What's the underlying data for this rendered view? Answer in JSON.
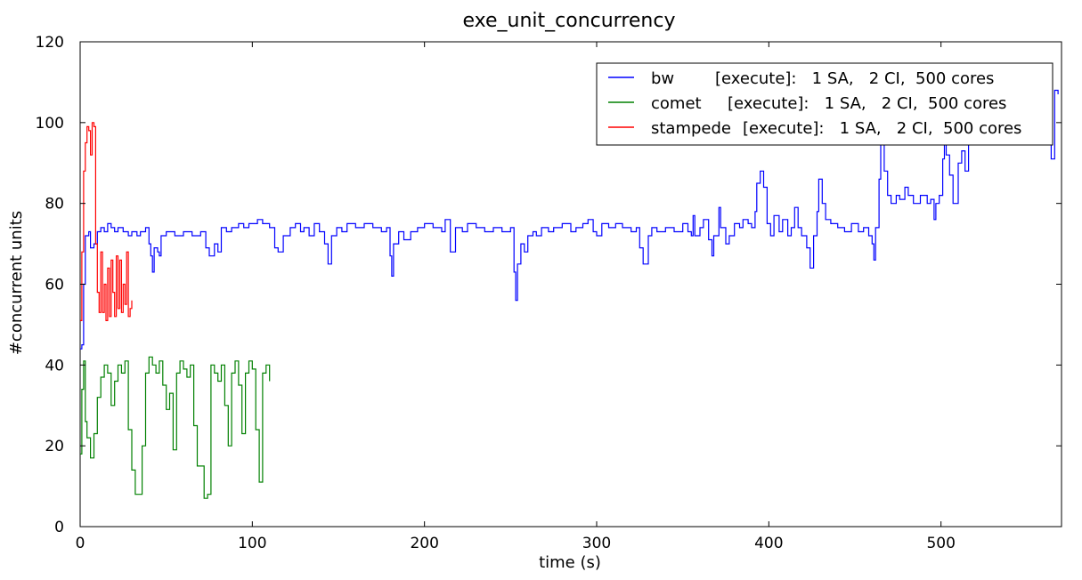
{
  "chart_data": {
    "type": "line",
    "title": "exe_unit_concurrency",
    "xlabel": "time (s)",
    "ylabel": "#concurrent units",
    "xlim": [
      0,
      570
    ],
    "ylim": [
      0,
      120
    ],
    "x_ticks": [
      0,
      100,
      200,
      300,
      400,
      500
    ],
    "y_ticks": [
      0,
      20,
      40,
      60,
      80,
      100,
      120
    ],
    "legend_position": "top-right",
    "series": [
      {
        "name": "bw",
        "legend_name": "bw",
        "legend_detail": "[execute]:   1 SA,   2 CI,  500 cores",
        "color": "#0000ff",
        "points": [
          [
            0,
            44
          ],
          [
            1,
            45
          ],
          [
            2,
            60
          ],
          [
            3,
            72
          ],
          [
            5,
            73
          ],
          [
            6,
            69
          ],
          [
            8,
            70
          ],
          [
            10,
            73
          ],
          [
            12,
            74
          ],
          [
            14,
            73
          ],
          [
            16,
            75
          ],
          [
            18,
            74
          ],
          [
            20,
            73
          ],
          [
            22,
            74
          ],
          [
            25,
            73
          ],
          [
            28,
            72
          ],
          [
            30,
            73
          ],
          [
            33,
            72
          ],
          [
            35,
            73
          ],
          [
            38,
            74
          ],
          [
            40,
            70
          ],
          [
            41,
            67
          ],
          [
            42,
            63
          ],
          [
            43,
            69
          ],
          [
            45,
            68
          ],
          [
            46,
            67
          ],
          [
            47,
            72
          ],
          [
            50,
            73
          ],
          [
            55,
            72
          ],
          [
            60,
            73
          ],
          [
            65,
            72
          ],
          [
            70,
            73
          ],
          [
            73,
            69
          ],
          [
            75,
            67
          ],
          [
            78,
            70
          ],
          [
            80,
            68
          ],
          [
            82,
            74
          ],
          [
            85,
            73
          ],
          [
            88,
            74
          ],
          [
            92,
            75
          ],
          [
            95,
            74
          ],
          [
            98,
            75
          ],
          [
            100,
            75
          ],
          [
            103,
            76
          ],
          [
            106,
            75
          ],
          [
            110,
            74
          ],
          [
            113,
            69
          ],
          [
            115,
            68
          ],
          [
            118,
            72
          ],
          [
            122,
            74
          ],
          [
            125,
            75
          ],
          [
            128,
            73
          ],
          [
            130,
            74
          ],
          [
            133,
            72
          ],
          [
            136,
            75
          ],
          [
            139,
            73
          ],
          [
            142,
            70
          ],
          [
            144,
            65
          ],
          [
            146,
            72
          ],
          [
            149,
            74
          ],
          [
            152,
            73
          ],
          [
            155,
            75
          ],
          [
            160,
            74
          ],
          [
            165,
            75
          ],
          [
            170,
            74
          ],
          [
            175,
            73
          ],
          [
            178,
            74
          ],
          [
            180,
            67
          ],
          [
            181,
            62
          ],
          [
            182,
            70
          ],
          [
            185,
            73
          ],
          [
            188,
            71
          ],
          [
            192,
            73
          ],
          [
            196,
            74
          ],
          [
            200,
            75
          ],
          [
            205,
            74
          ],
          [
            210,
            73
          ],
          [
            212,
            76
          ],
          [
            215,
            68
          ],
          [
            218,
            74
          ],
          [
            222,
            73
          ],
          [
            225,
            75
          ],
          [
            230,
            74
          ],
          [
            235,
            73
          ],
          [
            240,
            74
          ],
          [
            245,
            73
          ],
          [
            250,
            74
          ],
          [
            252,
            63
          ],
          [
            253,
            56
          ],
          [
            254,
            65
          ],
          [
            256,
            70
          ],
          [
            258,
            68
          ],
          [
            260,
            72
          ],
          [
            263,
            73
          ],
          [
            265,
            72
          ],
          [
            268,
            74
          ],
          [
            272,
            73
          ],
          [
            275,
            74
          ],
          [
            280,
            75
          ],
          [
            285,
            73
          ],
          [
            288,
            74
          ],
          [
            292,
            75
          ],
          [
            295,
            76
          ],
          [
            298,
            73
          ],
          [
            300,
            72
          ],
          [
            303,
            75
          ],
          [
            307,
            74
          ],
          [
            311,
            75
          ],
          [
            315,
            74
          ],
          [
            320,
            73
          ],
          [
            323,
            74
          ],
          [
            325,
            69
          ],
          [
            327,
            65
          ],
          [
            330,
            72
          ],
          [
            332,
            74
          ],
          [
            335,
            73
          ],
          [
            340,
            74
          ],
          [
            345,
            73
          ],
          [
            350,
            75
          ],
          [
            353,
            73
          ],
          [
            355,
            72
          ],
          [
            356,
            77
          ],
          [
            357,
            72
          ],
          [
            360,
            74
          ],
          [
            362,
            76
          ],
          [
            365,
            71
          ],
          [
            367,
            67
          ],
          [
            368,
            72
          ],
          [
            371,
            79
          ],
          [
            372,
            74
          ],
          [
            375,
            70
          ],
          [
            377,
            72
          ],
          [
            380,
            75
          ],
          [
            383,
            74
          ],
          [
            385,
            76
          ],
          [
            388,
            75
          ],
          [
            390,
            74
          ],
          [
            392,
            78
          ],
          [
            393,
            85
          ],
          [
            395,
            88
          ],
          [
            397,
            84
          ],
          [
            399,
            75
          ],
          [
            401,
            72
          ],
          [
            403,
            77
          ],
          [
            406,
            73
          ],
          [
            408,
            76
          ],
          [
            411,
            72
          ],
          [
            413,
            74
          ],
          [
            415,
            79
          ],
          [
            417,
            74
          ],
          [
            419,
            72
          ],
          [
            422,
            69
          ],
          [
            424,
            64
          ],
          [
            426,
            72
          ],
          [
            428,
            78
          ],
          [
            429,
            86
          ],
          [
            431,
            80
          ],
          [
            433,
            76
          ],
          [
            436,
            75
          ],
          [
            440,
            74
          ],
          [
            444,
            73
          ],
          [
            448,
            75
          ],
          [
            452,
            73
          ],
          [
            455,
            74
          ],
          [
            458,
            72
          ],
          [
            460,
            70
          ],
          [
            461,
            66
          ],
          [
            462,
            74
          ],
          [
            464,
            86
          ],
          [
            465,
            96
          ],
          [
            467,
            88
          ],
          [
            469,
            82
          ],
          [
            471,
            80
          ],
          [
            474,
            82
          ],
          [
            476,
            81
          ],
          [
            479,
            84
          ],
          [
            481,
            82
          ],
          [
            484,
            80
          ],
          [
            488,
            82
          ],
          [
            492,
            80
          ],
          [
            494,
            81
          ],
          [
            496,
            76
          ],
          [
            497,
            80
          ],
          [
            499,
            82
          ],
          [
            501,
            91
          ],
          [
            502,
            98
          ],
          [
            503,
            92
          ],
          [
            505,
            87
          ],
          [
            507,
            80
          ],
          [
            510,
            90
          ],
          [
            512,
            93
          ],
          [
            514,
            88
          ],
          [
            516,
            95
          ],
          [
            520,
            99
          ],
          [
            525,
            98
          ],
          [
            530,
            99
          ],
          [
            536,
            100
          ],
          [
            540,
            98
          ],
          [
            545,
            99
          ],
          [
            550,
            96
          ],
          [
            555,
            98
          ],
          [
            558,
            100
          ],
          [
            562,
            105
          ],
          [
            564,
            91
          ],
          [
            566,
            108
          ],
          [
            568,
            107
          ]
        ]
      },
      {
        "name": "comet",
        "legend_name": "comet",
        "legend_detail": "[execute]:   1 SA,   2 CI,  500 cores",
        "color": "#008000",
        "points": [
          [
            0,
            18
          ],
          [
            1,
            34
          ],
          [
            2,
            41
          ],
          [
            3,
            26
          ],
          [
            4,
            22
          ],
          [
            6,
            17
          ],
          [
            8,
            23
          ],
          [
            10,
            32
          ],
          [
            12,
            37
          ],
          [
            14,
            40
          ],
          [
            16,
            38
          ],
          [
            18,
            30
          ],
          [
            20,
            36
          ],
          [
            22,
            40
          ],
          [
            24,
            38
          ],
          [
            26,
            41
          ],
          [
            28,
            24
          ],
          [
            30,
            14
          ],
          [
            32,
            8
          ],
          [
            34,
            8
          ],
          [
            36,
            20
          ],
          [
            38,
            38
          ],
          [
            40,
            42
          ],
          [
            42,
            40
          ],
          [
            44,
            38
          ],
          [
            46,
            41
          ],
          [
            48,
            35
          ],
          [
            50,
            29
          ],
          [
            52,
            33
          ],
          [
            54,
            19
          ],
          [
            56,
            38
          ],
          [
            58,
            41
          ],
          [
            60,
            39
          ],
          [
            62,
            37
          ],
          [
            64,
            40
          ],
          [
            66,
            25
          ],
          [
            68,
            15
          ],
          [
            70,
            15
          ],
          [
            72,
            7
          ],
          [
            74,
            8
          ],
          [
            76,
            40
          ],
          [
            78,
            38
          ],
          [
            80,
            36
          ],
          [
            82,
            40
          ],
          [
            84,
            30
          ],
          [
            86,
            20
          ],
          [
            88,
            38
          ],
          [
            90,
            41
          ],
          [
            92,
            35
          ],
          [
            94,
            23
          ],
          [
            96,
            38
          ],
          [
            98,
            41
          ],
          [
            100,
            39
          ],
          [
            102,
            24
          ],
          [
            104,
            11
          ],
          [
            106,
            38
          ],
          [
            108,
            40
          ],
          [
            110,
            36
          ]
        ]
      },
      {
        "name": "stampede",
        "legend_name": "stampede",
        "legend_detail": "[execute]:   1 SA,   2 CI,  500 cores",
        "color": "#ff0000",
        "points": [
          [
            0,
            51
          ],
          [
            1,
            68
          ],
          [
            2,
            88
          ],
          [
            3,
            95
          ],
          [
            4,
            99
          ],
          [
            5,
            98
          ],
          [
            6,
            92
          ],
          [
            7,
            100
          ],
          [
            8,
            99
          ],
          [
            9,
            70
          ],
          [
            10,
            58
          ],
          [
            11,
            53
          ],
          [
            12,
            68
          ],
          [
            13,
            53
          ],
          [
            14,
            60
          ],
          [
            15,
            51
          ],
          [
            16,
            64
          ],
          [
            17,
            52
          ],
          [
            18,
            66
          ],
          [
            19,
            58
          ],
          [
            20,
            52
          ],
          [
            21,
            67
          ],
          [
            22,
            54
          ],
          [
            23,
            66
          ],
          [
            24,
            53
          ],
          [
            25,
            60
          ],
          [
            26,
            55
          ],
          [
            27,
            68
          ],
          [
            28,
            52
          ],
          [
            29,
            54
          ],
          [
            30,
            56
          ]
        ]
      }
    ]
  }
}
